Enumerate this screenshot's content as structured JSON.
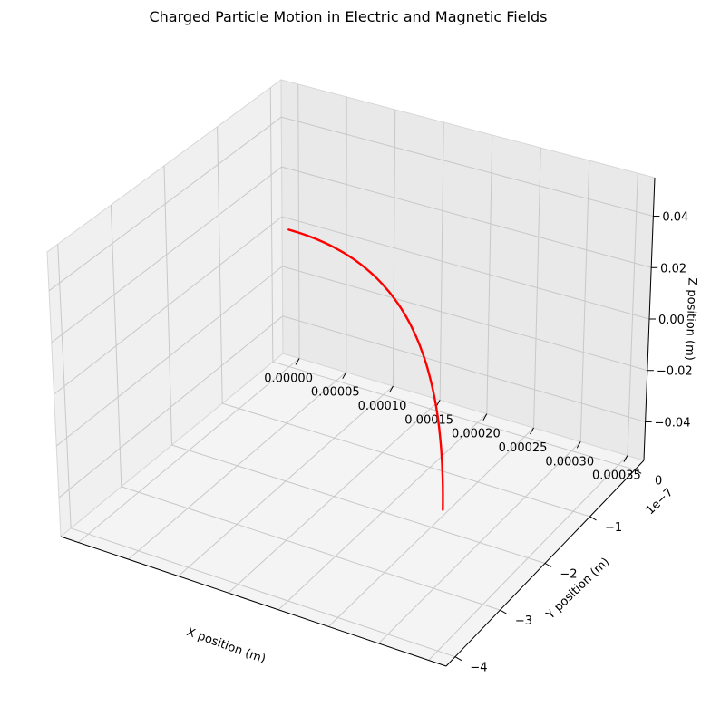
{
  "chart_data": {
    "type": "line",
    "projection": "3d",
    "title": "Charged Particle Motion in Electric and Magnetic Fields",
    "xlabel": "X position (m)",
    "ylabel": "Y position (m)",
    "zlabel": "Z position (m)",
    "xlim": [
      -1.75e-05,
      0.0003675
    ],
    "ylim": [
      -4.2e-07,
      2e-08
    ],
    "zlim": [
      -0.055,
      0.055
    ],
    "grid": true,
    "x_ticks": [
      0,
      5e-05,
      0.0001,
      0.00015,
      0.0002,
      0.00025,
      0.0003,
      0.00035
    ],
    "x_tick_labels": [
      "0.00000",
      "0.00005",
      "0.00010",
      "0.00015",
      "0.00020",
      "0.00025",
      "0.00030",
      "0.00035"
    ],
    "y_ticks": [
      0,
      -1e-07,
      -2e-07,
      -3e-07,
      -4e-07
    ],
    "y_tick_labels": [
      "0",
      "−1",
      "−2",
      "−3",
      "−4"
    ],
    "y_offset_label": "1e−7",
    "z_ticks": [
      -0.04,
      -0.02,
      0,
      0.02,
      0.04
    ],
    "z_tick_labels": [
      "−0.04",
      "−0.02",
      "0.00",
      "0.02",
      "0.04"
    ],
    "series": [
      {
        "color": "#ff0000",
        "x": [
          0,
          5e-05,
          0.0001,
          0.00015,
          0.0002,
          0.00025,
          0.0003,
          0.00035
        ],
        "y": [
          0,
          -8.2e-09,
          -3.27e-08,
          -7.35e-08,
          -1.306e-07,
          -2.041e-07,
          -2.939e-07,
          -4e-07
        ],
        "z": [
          0,
          0,
          0,
          0,
          0,
          0,
          0,
          0
        ]
      }
    ]
  }
}
